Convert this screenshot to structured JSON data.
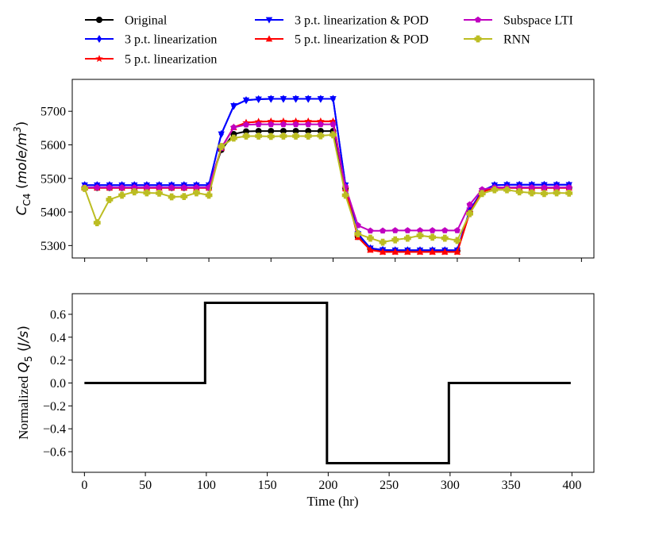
{
  "chart_data": [
    {
      "type": "line",
      "ylabel": "C_C4 (mole/m^3)",
      "ylabel_main": "C",
      "ylabel_sub": "C4",
      "ylabel_unit_pre": " (",
      "ylabel_unit_mid": "mole/m",
      "ylabel_unit_sup": "3",
      "ylabel_unit_post": ")",
      "xlim": [
        -10,
        410
      ],
      "ylim": [
        5263,
        5795
      ],
      "xticks": [
        0,
        50,
        100,
        150,
        200,
        250,
        300,
        350,
        400
      ],
      "yticks": [
        5300,
        5400,
        5500,
        5600,
        5700
      ],
      "ytick_labels": [
        "5300",
        "5400",
        "5500",
        "5600",
        "5700"
      ],
      "x": [
        0,
        10,
        20,
        30,
        40,
        50,
        60,
        70,
        80,
        90,
        100,
        110,
        120,
        130,
        140,
        150,
        160,
        170,
        180,
        190,
        200,
        210,
        220,
        230,
        240,
        250,
        260,
        270,
        280,
        290,
        300,
        310,
        320,
        330,
        340,
        350,
        360,
        370,
        380,
        390
      ],
      "legend_position": "top",
      "series": [
        {
          "name": "Original",
          "color": "#000000",
          "marker": "circle",
          "values": [
            5472,
            5472,
            5472,
            5472,
            5472,
            5472,
            5472,
            5472,
            5472,
            5472,
            5472,
            5585,
            5632,
            5640,
            5641,
            5641,
            5641,
            5641,
            5641,
            5641,
            5641,
            5470,
            5326,
            5290,
            5285,
            5284,
            5284,
            5284,
            5284,
            5284,
            5284,
            5400,
            5460,
            5472,
            5472,
            5472,
            5472,
            5472,
            5472,
            5472
          ]
        },
        {
          "name": "3 p.t. linearization",
          "color": "#0000ff",
          "marker": "diamond",
          "values": [
            5480,
            5480,
            5480,
            5480,
            5480,
            5480,
            5480,
            5480,
            5480,
            5480,
            5480,
            5632,
            5716,
            5733,
            5736,
            5737,
            5737,
            5737,
            5737,
            5737,
            5737,
            5480,
            5335,
            5292,
            5287,
            5286,
            5286,
            5286,
            5286,
            5286,
            5286,
            5405,
            5463,
            5480,
            5481,
            5481,
            5481,
            5481,
            5481,
            5481
          ]
        },
        {
          "name": "5 p.t. linearization",
          "color": "#ff0000",
          "marker": "star",
          "values": [
            5472,
            5472,
            5472,
            5472,
            5472,
            5472,
            5472,
            5472,
            5472,
            5472,
            5472,
            5590,
            5652,
            5666,
            5669,
            5670,
            5670,
            5670,
            5670,
            5670,
            5670,
            5470,
            5325,
            5287,
            5281,
            5281,
            5281,
            5281,
            5281,
            5281,
            5281,
            5398,
            5460,
            5472,
            5472,
            5472,
            5472,
            5472,
            5472,
            5472
          ]
        },
        {
          "name": "3 p.t. linearization & POD",
          "color": "#0000ff",
          "marker": "triangle-down",
          "values": [
            5480,
            5480,
            5480,
            5480,
            5480,
            5480,
            5480,
            5480,
            5480,
            5480,
            5480,
            5632,
            5716,
            5733,
            5736,
            5737,
            5737,
            5737,
            5737,
            5737,
            5737,
            5480,
            5335,
            5292,
            5287,
            5286,
            5286,
            5286,
            5286,
            5286,
            5286,
            5405,
            5463,
            5480,
            5481,
            5481,
            5481,
            5481,
            5481,
            5481
          ]
        },
        {
          "name": "5 p.t. linearization & POD",
          "color": "#ff0000",
          "marker": "triangle-up",
          "values": [
            5472,
            5472,
            5472,
            5472,
            5472,
            5472,
            5472,
            5472,
            5472,
            5472,
            5472,
            5590,
            5652,
            5666,
            5669,
            5670,
            5670,
            5670,
            5670,
            5670,
            5670,
            5470,
            5325,
            5287,
            5281,
            5281,
            5281,
            5281,
            5281,
            5281,
            5281,
            5398,
            5460,
            5472,
            5472,
            5472,
            5472,
            5472,
            5472,
            5472
          ]
        },
        {
          "name": "Subspace LTI",
          "color": "#c000c0",
          "marker": "pentagon",
          "values": [
            5473,
            5473,
            5473,
            5473,
            5473,
            5473,
            5473,
            5473,
            5473,
            5473,
            5473,
            5590,
            5652,
            5660,
            5661,
            5661,
            5661,
            5661,
            5661,
            5661,
            5661,
            5475,
            5360,
            5344,
            5344,
            5345,
            5345,
            5345,
            5345,
            5345,
            5345,
            5422,
            5467,
            5473,
            5473,
            5473,
            5473,
            5473,
            5473,
            5473
          ]
        },
        {
          "name": "RNN",
          "color": "#bcbd22",
          "marker": "plus-filled",
          "values": [
            5470,
            5368,
            5437,
            5450,
            5460,
            5457,
            5456,
            5445,
            5446,
            5457,
            5450,
            5595,
            5620,
            5626,
            5626,
            5625,
            5626,
            5626,
            5626,
            5627,
            5630,
            5450,
            5335,
            5322,
            5310,
            5317,
            5322,
            5330,
            5325,
            5322,
            5315,
            5395,
            5455,
            5466,
            5466,
            5460,
            5457,
            5455,
            5457,
            5456
          ]
        }
      ]
    },
    {
      "type": "line",
      "title": "",
      "xlabel": "Time (hr)",
      "ylabel": "Normalized Q_5 (J/s)",
      "ylabel_pre": "Normalized ",
      "ylabel_main": "Q",
      "ylabel_sub": "5",
      "ylabel_unit_pre": " (",
      "ylabel_unit_mid": "J/s",
      "ylabel_unit_post": ")",
      "xlim": [
        -10,
        418
      ],
      "ylim": [
        -0.78,
        0.78
      ],
      "xticks": [
        0,
        50,
        100,
        150,
        200,
        250,
        300,
        350,
        400
      ],
      "xtick_labels": [
        "0",
        "50",
        "100",
        "150",
        "200",
        "250",
        "300",
        "350",
        "400"
      ],
      "yticks": [
        -0.6,
        -0.4,
        -0.2,
        0.0,
        0.2,
        0.4,
        0.6
      ],
      "ytick_labels": [
        "−0.6",
        "−0.4",
        "−0.2",
        "0.0",
        "0.2",
        "0.4",
        "0.6"
      ],
      "series": [
        {
          "name": "Q5",
          "color": "#000000",
          "x": [
            0,
            99,
            99,
            199,
            199,
            299,
            299,
            399
          ],
          "values": [
            0,
            0,
            0.7,
            0.7,
            -0.7,
            -0.7,
            0,
            0
          ]
        }
      ]
    }
  ]
}
